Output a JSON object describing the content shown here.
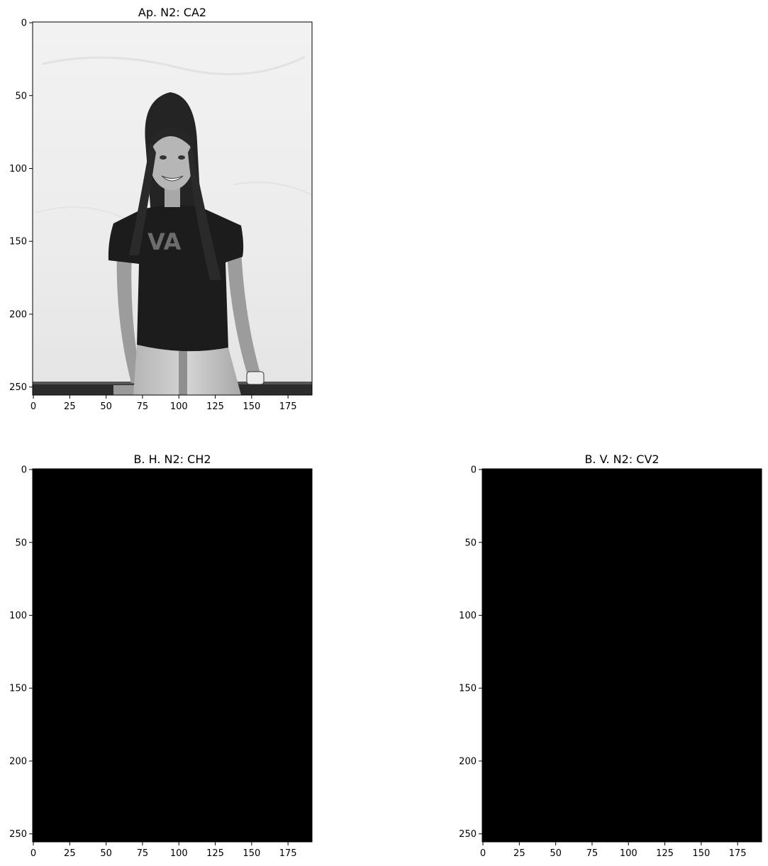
{
  "chart_data": [
    {
      "type": "image",
      "title": "Ap. N2: CA2",
      "image": {
        "content": "grayscale photo: smiling woman with long dark hair, black VANS t-shirt, light jeans, wristwatch, standing against a white wall",
        "colormap": "gray"
      },
      "xlim": [
        0,
        191
      ],
      "ylim": [
        255,
        0
      ],
      "xticks": [
        0,
        25,
        50,
        75,
        100,
        125,
        150,
        175
      ],
      "yticks": [
        0,
        50,
        100,
        150,
        200,
        250
      ],
      "image_uniform_color": ""
    },
    {
      "type": "image",
      "title": "B. H. N2: CH2",
      "xlim": [
        0,
        191
      ],
      "ylim": [
        255,
        0
      ],
      "xticks": [
        0,
        25,
        50,
        75,
        100,
        125,
        150,
        175
      ],
      "yticks": [
        0,
        50,
        100,
        150,
        200,
        250
      ],
      "image_uniform_color": "#000000"
    },
    {
      "type": "image",
      "title": "B. V. N2: CV2",
      "xlim": [
        0,
        191
      ],
      "ylim": [
        255,
        0
      ],
      "xticks": [
        0,
        25,
        50,
        75,
        100,
        125,
        150,
        175
      ],
      "yticks": [
        0,
        50,
        100,
        150,
        200,
        250
      ],
      "image_uniform_color": "#000000"
    }
  ]
}
